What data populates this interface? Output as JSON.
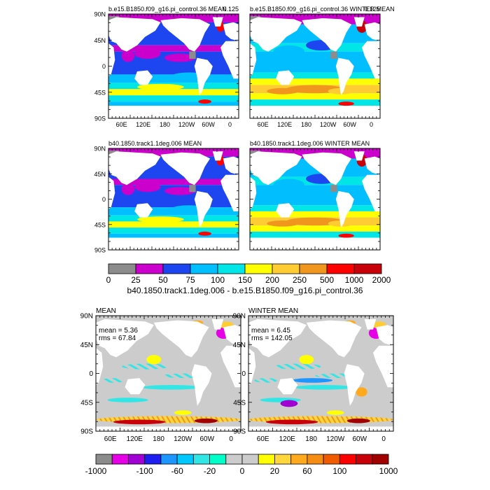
{
  "chart_data": {
    "type": "heatmap",
    "panels": [
      {
        "id": "p1",
        "title": "b.e15.B1850.f09_g16.pi_control.36 MEAN",
        "corner_label": "0.125",
        "field": "mean",
        "diff": false
      },
      {
        "id": "p2",
        "title": "b.e15.B1850.f09_g16.pi_control.36 WINTER MEAN",
        "corner_label": "0.125",
        "field": "winter",
        "diff": false
      },
      {
        "id": "p3",
        "title": "b40.1850.track1.1deg.006 MEAN",
        "field": "mean",
        "diff": false
      },
      {
        "id": "p4",
        "title": "b40.1850.track1.1deg.006 WINTER MEAN",
        "field": "winter",
        "diff": false
      },
      {
        "id": "p5",
        "title": "MEAN",
        "stats": [
          "mean = 5.36",
          "rms = 67.84"
        ],
        "field": "mean",
        "diff": true
      },
      {
        "id": "p6",
        "title": "WINTER MEAN",
        "stats": [
          "mean = 6.45",
          "rms = 142.05"
        ],
        "field": "winter",
        "diff": true
      }
    ],
    "lat_labels": [
      "90N",
      "45N",
      "0",
      "45S",
      "90S"
    ],
    "lon_labels": [
      "60E",
      "120E",
      "180",
      "120W",
      "60W",
      "0"
    ],
    "colorbar_top": {
      "levels": [
        "0",
        "25",
        "50",
        "75",
        "100",
        "150",
        "200",
        "250",
        "500",
        "1000",
        "2000"
      ],
      "colors": [
        "#8c8c8c",
        "#cc00cc",
        "#1e46f0",
        "#00beff",
        "#00e6e6",
        "#ffff00",
        "#ffcc33",
        "#f0961e",
        "#ff0000",
        "#c8000a"
      ],
      "label": "b40.1850.track1.1deg.006 - b.e15.B1850.f09_g16.pi_control.36"
    },
    "colorbar_bottom": {
      "levels": [
        "-1000",
        "-100",
        "-60",
        "-20",
        "0",
        "20",
        "60",
        "100",
        "1000"
      ],
      "colors": [
        "#8c8c8c",
        "#e600e6",
        "#a000d2",
        "#1e1ef0",
        "#1e96ff",
        "#00c8ff",
        "#32e6e6",
        "#00ffc8",
        "#cccccc",
        "#cccccc",
        "#ffff00",
        "#ffd73c",
        "#ffaa1e",
        "#f58c14",
        "#f05a00",
        "#ff0000",
        "#c8000a",
        "#a00000"
      ]
    }
  }
}
